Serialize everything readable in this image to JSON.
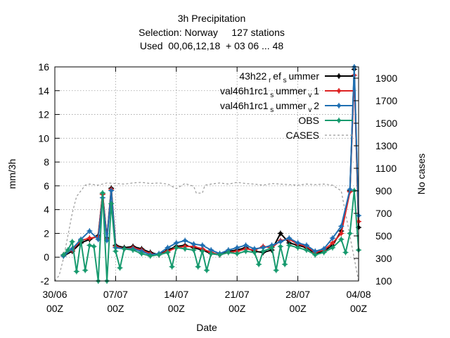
{
  "chart_data": {
    "type": "line",
    "title_lines": [
      "3h Precipitation",
      "Selection: Norway     127 stations",
      "Used  00,06,12,18  + 03 06 ... 48"
    ],
    "xlabel": "Date",
    "ylabel": "mm/3h",
    "y2label": "No cases",
    "x_ticks": [
      {
        "day": 0,
        "top": "30/06",
        "bottom": "00Z"
      },
      {
        "day": 7,
        "top": "07/07",
        "bottom": "00Z"
      },
      {
        "day": 14,
        "top": "14/07",
        "bottom": "00Z"
      },
      {
        "day": 21,
        "top": "21/07",
        "bottom": "00Z"
      },
      {
        "day": 28,
        "top": "28/07",
        "bottom": "00Z"
      },
      {
        "day": 35,
        "top": "04/08",
        "bottom": "00Z"
      }
    ],
    "xlim": [
      0,
      35
    ],
    "ylim": [
      -2,
      16
    ],
    "y_ticks": [
      -2,
      0,
      2,
      4,
      6,
      8,
      10,
      12,
      14,
      16
    ],
    "y2lim": [
      100,
      2000
    ],
    "y2_ticks": [
      100,
      300,
      500,
      700,
      900,
      1100,
      1300,
      1500,
      1700,
      1900
    ],
    "grid": true,
    "legend_position": "top-right",
    "series": [
      {
        "name": "43h22 ref summer",
        "legend_main": "43h22",
        "legend_sub1": "r",
        "legend_mid": "ef",
        "legend_sub2": "s",
        "legend_end": "ummer",
        "color": "#000000",
        "axis": "y",
        "points": [
          [
            1,
            0.1
          ],
          [
            2,
            0.5
          ],
          [
            3,
            1.2
          ],
          [
            4,
            1.5
          ],
          [
            5,
            1.8
          ],
          [
            5.5,
            5.3
          ],
          [
            6,
            1.6
          ],
          [
            6.5,
            5.8
          ],
          [
            7,
            1.0
          ],
          [
            8,
            0.8
          ],
          [
            9,
            0.9
          ],
          [
            10,
            0.7
          ],
          [
            11,
            0.4
          ],
          [
            12,
            0.2
          ],
          [
            13,
            0.6
          ],
          [
            14,
            0.9
          ],
          [
            15,
            1.0
          ],
          [
            16,
            0.8
          ],
          [
            17,
            0.6
          ],
          [
            18,
            0.3
          ],
          [
            19,
            0.2
          ],
          [
            20,
            0.5
          ],
          [
            21,
            0.6
          ],
          [
            22,
            0.8
          ],
          [
            23,
            0.5
          ],
          [
            24,
            0.4
          ],
          [
            25,
            0.6
          ],
          [
            26,
            2.0
          ],
          [
            27,
            1.2
          ],
          [
            28,
            1.0
          ],
          [
            29,
            0.8
          ],
          [
            30,
            0.3
          ],
          [
            31,
            0.5
          ],
          [
            32,
            1.0
          ],
          [
            33,
            2.2
          ],
          [
            34,
            5.6
          ],
          [
            34.5,
            15.8
          ],
          [
            35,
            2.5
          ]
        ]
      },
      {
        "name": "val46h1rc1 summer v1",
        "legend_main": "val46h1rc1",
        "legend_sub1": "s",
        "legend_mid": "ummer",
        "legend_sub2": "v",
        "legend_end": "1",
        "color": "#dd2222",
        "axis": "y",
        "points": [
          [
            1,
            0.2
          ],
          [
            2,
            0.6
          ],
          [
            3,
            1.4
          ],
          [
            4,
            1.6
          ],
          [
            5,
            1.7
          ],
          [
            5.5,
            5.3
          ],
          [
            6,
            1.5
          ],
          [
            6.5,
            5.7
          ],
          [
            7,
            0.9
          ],
          [
            8,
            0.7
          ],
          [
            9,
            0.8
          ],
          [
            10,
            0.6
          ],
          [
            11,
            0.3
          ],
          [
            12,
            0.2
          ],
          [
            13,
            0.5
          ],
          [
            14,
            0.8
          ],
          [
            15,
            0.9
          ],
          [
            16,
            0.9
          ],
          [
            17,
            0.7
          ],
          [
            18,
            0.4
          ],
          [
            19,
            0.2
          ],
          [
            20,
            0.4
          ],
          [
            21,
            0.5
          ],
          [
            22,
            0.7
          ],
          [
            23,
            0.6
          ],
          [
            24,
            0.9
          ],
          [
            25,
            0.8
          ],
          [
            26,
            1.4
          ],
          [
            27,
            1.5
          ],
          [
            28,
            1.1
          ],
          [
            29,
            0.9
          ],
          [
            30,
            0.4
          ],
          [
            31,
            0.6
          ],
          [
            32,
            1.2
          ],
          [
            33,
            2.0
          ],
          [
            34,
            5.5
          ],
          [
            34.5,
            15.3
          ],
          [
            35,
            3.0
          ]
        ]
      },
      {
        "name": "val46h1rc1 summer v2",
        "legend_main": "val46h1rc1",
        "legend_sub1": "s",
        "legend_mid": "ummer",
        "legend_sub2": "v",
        "legend_end": "2",
        "color": "#1f6fb2",
        "axis": "y",
        "points": [
          [
            1,
            0.1
          ],
          [
            2,
            0.7
          ],
          [
            3,
            1.5
          ],
          [
            4,
            2.2
          ],
          [
            5,
            1.5
          ],
          [
            5.5,
            5.0
          ],
          [
            6,
            1.4
          ],
          [
            6.5,
            5.6
          ],
          [
            7,
            0.8
          ],
          [
            8,
            0.7
          ],
          [
            9,
            0.7
          ],
          [
            10,
            0.5
          ],
          [
            11,
            0.2
          ],
          [
            12,
            0.3
          ],
          [
            13,
            0.8
          ],
          [
            14,
            1.2
          ],
          [
            15,
            1.4
          ],
          [
            16,
            1.1
          ],
          [
            17,
            1.0
          ],
          [
            18,
            0.6
          ],
          [
            19,
            0.3
          ],
          [
            20,
            0.6
          ],
          [
            21,
            0.8
          ],
          [
            22,
            1.0
          ],
          [
            23,
            0.7
          ],
          [
            24,
            0.8
          ],
          [
            25,
            1.0
          ],
          [
            26,
            1.3
          ],
          [
            27,
            1.6
          ],
          [
            28,
            1.2
          ],
          [
            29,
            1.0
          ],
          [
            30,
            0.5
          ],
          [
            31,
            0.7
          ],
          [
            32,
            1.6
          ],
          [
            33,
            2.6
          ],
          [
            34,
            5.7
          ],
          [
            34.5,
            16.0
          ],
          [
            35,
            3.5
          ]
        ]
      },
      {
        "name": "OBS",
        "legend_main": "OBS",
        "color": "#179a6e",
        "axis": "y",
        "points": [
          [
            1,
            0.2
          ],
          [
            1.5,
            0.6
          ],
          [
            2,
            1.3
          ],
          [
            2.5,
            -1.2
          ],
          [
            3,
            1.4
          ],
          [
            3.5,
            -1.1
          ],
          [
            4,
            1.0
          ],
          [
            4.5,
            0.9
          ],
          [
            5,
            -2.0
          ],
          [
            5.5,
            5.4
          ],
          [
            6,
            -2.0
          ],
          [
            6.5,
            4.5
          ],
          [
            7,
            0.5
          ],
          [
            7.5,
            -0.9
          ],
          [
            8,
            0.7
          ],
          [
            9,
            0.6
          ],
          [
            10,
            0.3
          ],
          [
            11,
            0.1
          ],
          [
            12,
            0.2
          ],
          [
            13,
            0.4
          ],
          [
            13.5,
            -0.8
          ],
          [
            14,
            0.8
          ],
          [
            15,
            0.7
          ],
          [
            16,
            0.6
          ],
          [
            16.5,
            -0.8
          ],
          [
            17,
            0.5
          ],
          [
            17.5,
            -1.1
          ],
          [
            18,
            0.3
          ],
          [
            19,
            0.2
          ],
          [
            20,
            0.4
          ],
          [
            21,
            0.3
          ],
          [
            22,
            0.5
          ],
          [
            23,
            0.4
          ],
          [
            23.5,
            -0.6
          ],
          [
            24,
            0.5
          ],
          [
            25,
            0.8
          ],
          [
            25.5,
            -1.1
          ],
          [
            26,
            0.9
          ],
          [
            26.5,
            -0.6
          ],
          [
            27,
            1.0
          ],
          [
            28,
            0.8
          ],
          [
            29,
            0.6
          ],
          [
            30,
            0.2
          ],
          [
            31,
            0.4
          ],
          [
            32,
            0.8
          ],
          [
            33,
            1.5
          ],
          [
            33.5,
            0.4
          ],
          [
            34,
            2.0
          ],
          [
            34.5,
            5.6
          ],
          [
            35,
            0.6
          ]
        ]
      },
      {
        "name": "CASES",
        "legend_main": "CASES",
        "color": "#999999",
        "axis": "y2",
        "dashed": true,
        "points": [
          [
            0,
            100
          ],
          [
            0.5,
            150
          ],
          [
            1,
            300
          ],
          [
            1.5,
            500
          ],
          [
            2,
            700
          ],
          [
            2.5,
            850
          ],
          [
            3,
            900
          ],
          [
            3.5,
            950
          ],
          [
            4,
            960
          ],
          [
            5,
            950
          ],
          [
            6,
            970
          ],
          [
            7,
            965
          ],
          [
            8,
            960
          ],
          [
            9,
            970
          ],
          [
            10,
            975
          ],
          [
            11,
            965
          ],
          [
            12,
            970
          ],
          [
            13,
            960
          ],
          [
            14,
            920
          ],
          [
            15,
            965
          ],
          [
            16,
            940
          ],
          [
            16.3,
            880
          ],
          [
            17,
            880
          ],
          [
            17.3,
            950
          ],
          [
            18,
            960
          ],
          [
            19,
            970
          ],
          [
            20,
            960
          ],
          [
            21,
            975
          ],
          [
            22,
            965
          ],
          [
            23,
            960
          ],
          [
            24,
            950
          ],
          [
            25,
            965
          ],
          [
            26,
            960
          ],
          [
            27,
            955
          ],
          [
            28,
            950
          ],
          [
            29,
            960
          ],
          [
            30,
            955
          ],
          [
            31,
            960
          ],
          [
            32,
            950
          ],
          [
            33,
            900
          ],
          [
            33.5,
            700
          ],
          [
            34,
            500
          ],
          [
            34.5,
            300
          ],
          [
            35,
            100
          ]
        ]
      }
    ]
  }
}
